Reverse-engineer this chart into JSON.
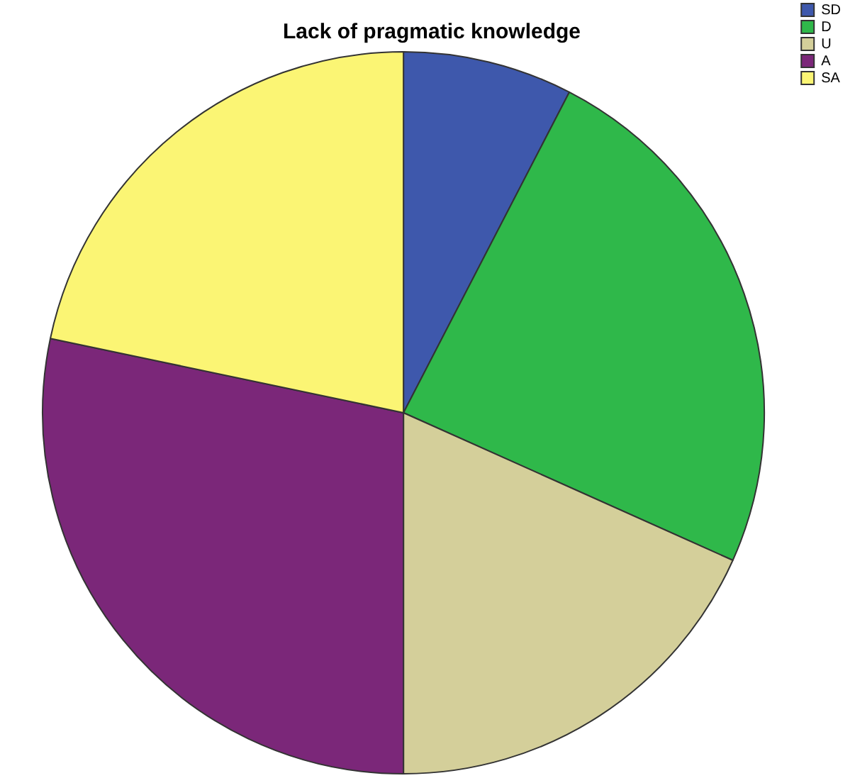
{
  "chart_data": {
    "type": "pie",
    "title": "Lack of pragmatic knowledge",
    "categories": [
      "SD",
      "D",
      "U",
      "A",
      "SA"
    ],
    "values": [
      7.6,
      24.1,
      18.3,
      28.3,
      21.7
    ],
    "colors": [
      "#3e58ac",
      "#2fb84a",
      "#d4cf9a",
      "#7b2779",
      "#fbf574"
    ],
    "legend": "top right"
  }
}
